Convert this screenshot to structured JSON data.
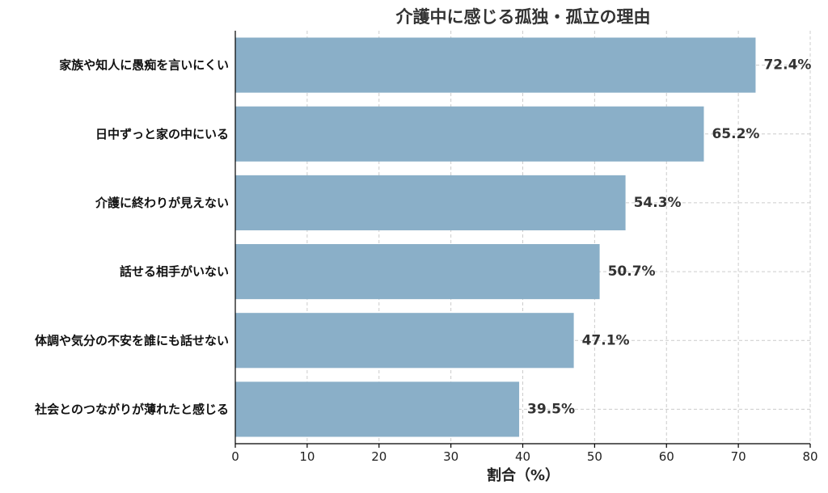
{
  "chart_data": {
    "type": "bar",
    "orientation": "horizontal",
    "title": "介護中に感じる孤独・孤立の理由",
    "xlabel": "割合（%）",
    "ylabel": "",
    "categories": [
      "家族や知人に愚痴を言いにくい",
      "日中ずっと家の中にいる",
      "介護に終わりが見えない",
      "話せる相手がいない",
      "体調や気分の不安を誰にも話せない",
      "社会とのつながりが薄れたと感じる"
    ],
    "values": [
      72.4,
      65.2,
      54.3,
      50.7,
      47.1,
      39.5
    ],
    "value_labels": [
      "72.4%",
      "65.2%",
      "54.3%",
      "50.7%",
      "47.1%",
      "39.5%"
    ],
    "xlim": [
      0,
      80
    ],
    "xticks": [
      0,
      10,
      20,
      30,
      40,
      50,
      60,
      70,
      80
    ],
    "grid": true,
    "bar_color": "#8aafc8"
  }
}
